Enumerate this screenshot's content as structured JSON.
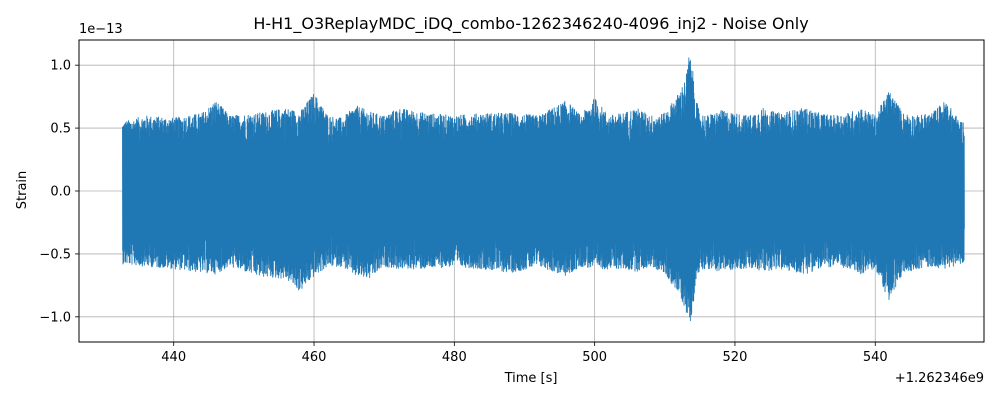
{
  "chart_data": {
    "type": "line",
    "title": "H-H1_O3ReplayMDC_iDQ_combo-1262346240-4096_inj2 - Noise Only",
    "xlabel": "Time [s]",
    "ylabel": "Strain",
    "x_offset_label": "+1.262346e9",
    "y_scale_label": "1e−13",
    "xlim": [
      426.5,
      555.5
    ],
    "ylim": [
      -1.2,
      1.2
    ],
    "x_ticks": [
      440,
      460,
      480,
      500,
      520,
      540
    ],
    "x_tick_labels": [
      "440",
      "460",
      "480",
      "500",
      "520",
      "540"
    ],
    "y_ticks": [
      -1.0,
      -0.5,
      0.0,
      0.5,
      1.0
    ],
    "y_tick_labels": [
      "−1.0",
      "−0.5",
      "0.0",
      "0.5",
      "1.0"
    ],
    "grid": true,
    "series": [
      {
        "color": "#1f77b4",
        "x_range": [
          432.7,
          552.7
        ],
        "envelope": {
          "x": [
            432.7,
            436,
            440,
            444,
            446,
            448,
            452,
            456,
            458,
            460,
            462,
            464,
            466,
            468,
            470,
            472,
            476,
            480,
            484,
            488,
            492,
            494,
            496,
            498,
            500,
            502,
            504,
            506,
            508,
            510,
            512,
            513,
            513.5,
            514,
            514.5,
            515,
            516,
            518,
            520,
            522,
            524,
            526,
            528,
            530,
            532,
            534,
            536,
            538,
            540,
            542,
            544,
            546,
            548,
            550,
            552,
            552.7
          ],
          "upper": [
            0.55,
            0.6,
            0.58,
            0.62,
            0.72,
            0.6,
            0.62,
            0.66,
            0.63,
            0.78,
            0.6,
            0.58,
            0.68,
            0.63,
            0.6,
            0.66,
            0.62,
            0.6,
            0.62,
            0.62,
            0.6,
            0.66,
            0.72,
            0.6,
            0.74,
            0.6,
            0.62,
            0.66,
            0.6,
            0.62,
            0.78,
            0.9,
            1.1,
            0.95,
            0.72,
            0.62,
            0.6,
            0.64,
            0.62,
            0.6,
            0.66,
            0.62,
            0.64,
            0.66,
            0.62,
            0.6,
            0.62,
            0.66,
            0.6,
            0.8,
            0.62,
            0.6,
            0.62,
            0.72,
            0.56,
            0.55
          ],
          "lower": [
            -0.58,
            -0.6,
            -0.62,
            -0.65,
            -0.66,
            -0.6,
            -0.68,
            -0.7,
            -0.8,
            -0.68,
            -0.6,
            -0.6,
            -0.68,
            -0.7,
            -0.6,
            -0.62,
            -0.62,
            -0.6,
            -0.62,
            -0.65,
            -0.6,
            -0.64,
            -0.68,
            -0.6,
            -0.62,
            -0.62,
            -0.62,
            -0.64,
            -0.6,
            -0.66,
            -0.82,
            -0.95,
            -1.08,
            -0.92,
            -0.72,
            -0.62,
            -0.62,
            -0.64,
            -0.62,
            -0.62,
            -0.64,
            -0.62,
            -0.64,
            -0.66,
            -0.62,
            -0.6,
            -0.62,
            -0.66,
            -0.62,
            -0.88,
            -0.65,
            -0.62,
            -0.6,
            -0.62,
            -0.58,
            -0.56
          ]
        }
      }
    ]
  }
}
